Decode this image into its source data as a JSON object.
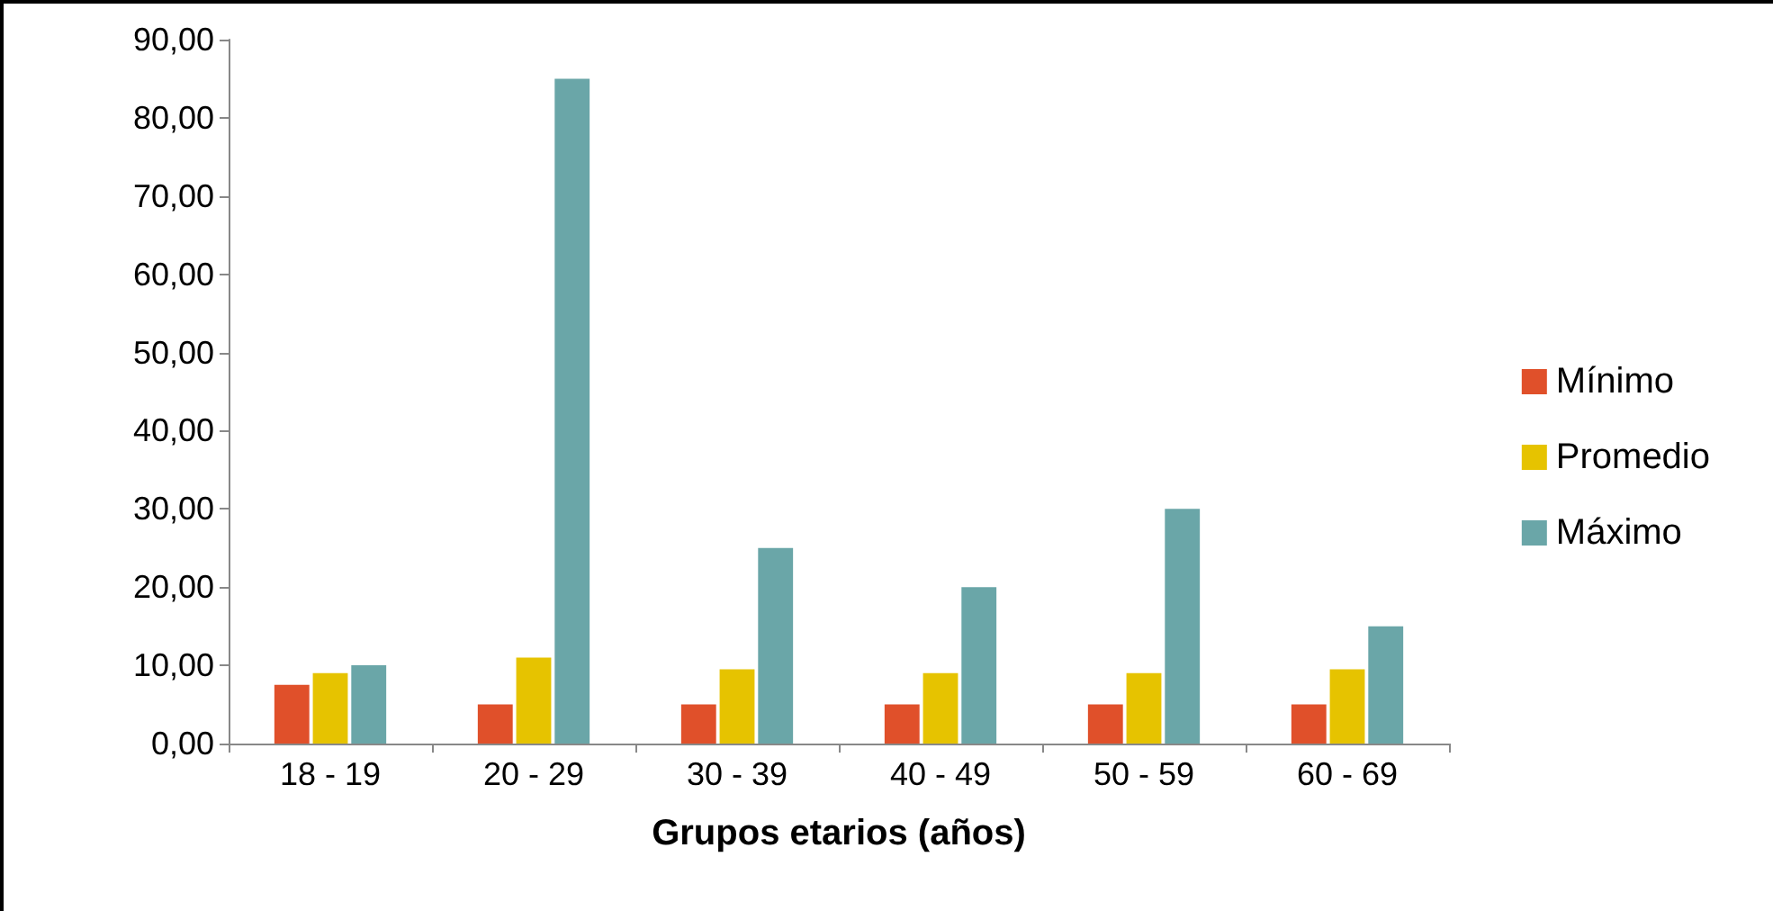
{
  "chart_data": {
    "type": "bar",
    "xlabel": "Grupos etarios (años)",
    "categories": [
      "18 - 19",
      "20 - 29",
      "30 - 39",
      "40 - 49",
      "50 - 59",
      "60 - 69"
    ],
    "series": [
      {
        "name": "Mínimo",
        "color": "#e0502a",
        "values": [
          7.5,
          5,
          5,
          5,
          5,
          5
        ]
      },
      {
        "name": "Promedio",
        "color": "#e6c300",
        "values": [
          9,
          11,
          9.5,
          9,
          9,
          9.5
        ]
      },
      {
        "name": "Máximo",
        "color": "#6aa6a8",
        "values": [
          10,
          85,
          25,
          20,
          30,
          15
        ]
      }
    ],
    "ylim": [
      0,
      90
    ],
    "yticks": [
      {
        "value": 0,
        "label": "0,00"
      },
      {
        "value": 10,
        "label": "10,00"
      },
      {
        "value": 20,
        "label": "20,00"
      },
      {
        "value": 30,
        "label": "30,00"
      },
      {
        "value": 40,
        "label": "40,00"
      },
      {
        "value": 50,
        "label": "50,00"
      },
      {
        "value": 60,
        "label": "60,00"
      },
      {
        "value": 70,
        "label": "70,00"
      },
      {
        "value": 80,
        "label": "80,00"
      },
      {
        "value": 90,
        "label": "90,00"
      }
    ],
    "grid": false,
    "legend": "right"
  }
}
